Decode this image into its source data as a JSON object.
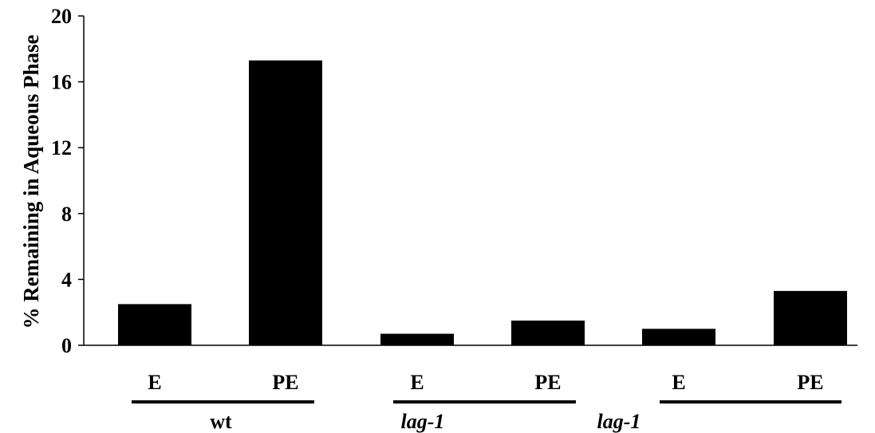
{
  "chart_data": {
    "type": "bar",
    "ylabel": "% Remaining in Aqueous Phase",
    "xlabel": "",
    "ylim": [
      0,
      20
    ],
    "yticks": [
      0,
      4,
      8,
      12,
      16,
      20
    ],
    "categories": [
      "E",
      "PE",
      "E",
      "PE",
      "E",
      "PE"
    ],
    "values": [
      2.5,
      17.3,
      0.7,
      1.5,
      1.0,
      3.3
    ],
    "groups": [
      {
        "label": "wt",
        "italic": false
      },
      {
        "label": "lag-1",
        "italic": true
      },
      {
        "label": "lag-1",
        "italic": true
      }
    ],
    "bar_color": "#000000",
    "grid": false
  }
}
